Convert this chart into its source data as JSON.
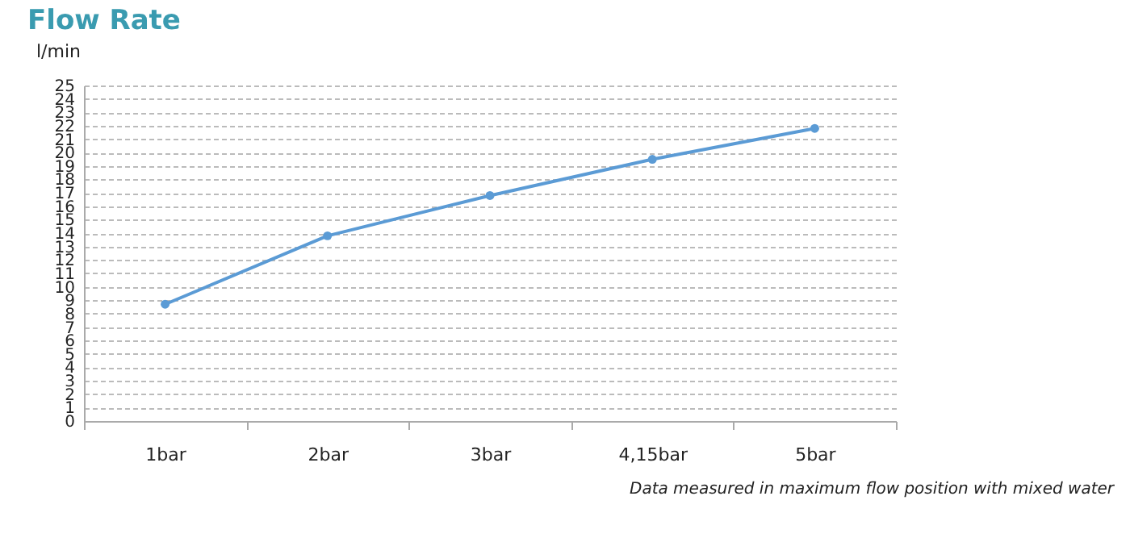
{
  "chart_data": {
    "type": "line",
    "title": "Flow Rate",
    "ylabel": "l/min",
    "categories": [
      "1bar",
      "2bar",
      "3bar",
      "4,15bar",
      "5bar"
    ],
    "series": [
      {
        "color": "#5b9bd5",
        "values": [
          8.7,
          13.8,
          16.8,
          19.5,
          21.8
        ]
      }
    ],
    "ylim": [
      0,
      25
    ],
    "yticks": [
      0,
      1,
      2,
      3,
      4,
      5,
      6,
      7,
      8,
      9,
      10,
      11,
      12,
      13,
      14,
      15,
      16,
      17,
      18,
      19,
      20,
      21,
      22,
      23,
      24,
      25
    ],
    "grid": "y",
    "marker": "circle",
    "line_style": "solid",
    "annotations": [
      "Data measured in maximum flow position with mixed water"
    ]
  }
}
